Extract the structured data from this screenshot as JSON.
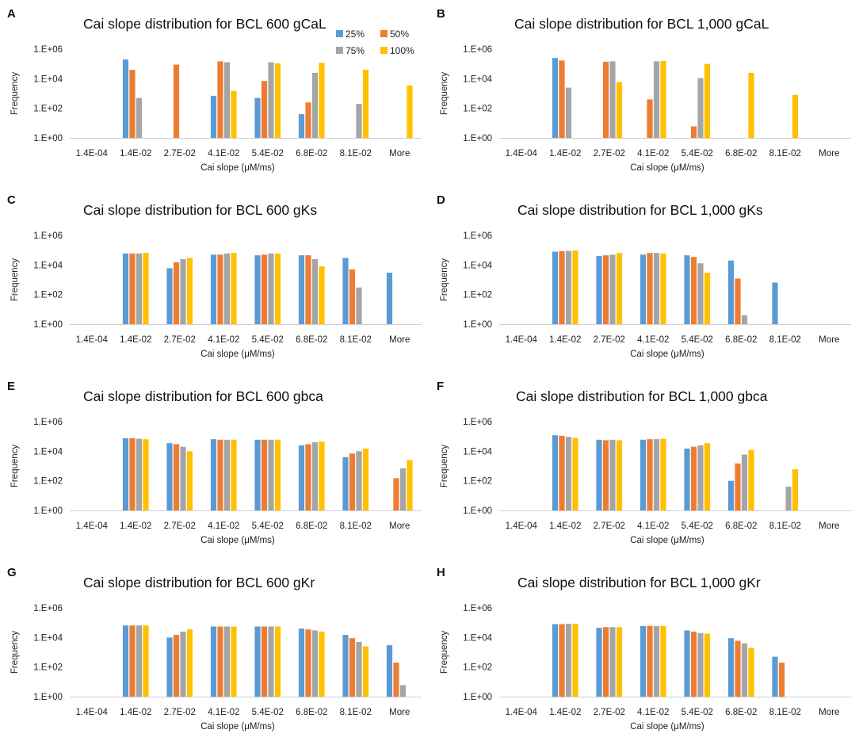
{
  "colors": {
    "p25": "#5B9BD5",
    "p50": "#ED7D31",
    "p75": "#A5A5A5",
    "p100": "#FFC000"
  },
  "legend": [
    "25%",
    "50%",
    "75%",
    "100%"
  ],
  "chart_data": [
    {
      "panel": "A",
      "type": "bar",
      "yscale": "log",
      "title": "Cai slope distribution for BCL 600 gCaL",
      "xlabel": "Cai slope (μM/ms)",
      "ylabel": "Frequency",
      "categories": [
        "1.4E-04",
        "1.4E-02",
        "2.7E-02",
        "4.1E-02",
        "5.4E-02",
        "6.8E-02",
        "8.1E-02",
        "More"
      ],
      "ytick_labels": [
        "1.E+00",
        "1.E+02",
        "1.E+04",
        "1.E+06"
      ],
      "ylim": [
        1,
        1000000
      ],
      "legend_position": "top-right",
      "series": [
        {
          "name": "25%",
          "values": [
            0,
            200000,
            0,
            700,
            500,
            40,
            0,
            0
          ]
        },
        {
          "name": "50%",
          "values": [
            0,
            40000,
            90000,
            150000,
            7000,
            250,
            0,
            0
          ]
        },
        {
          "name": "75%",
          "values": [
            0,
            500,
            0,
            130000,
            130000,
            25000,
            200,
            0
          ]
        },
        {
          "name": "100%",
          "values": [
            0,
            0,
            0,
            1500,
            110000,
            120000,
            40000,
            3500
          ]
        }
      ]
    },
    {
      "panel": "B",
      "type": "bar",
      "yscale": "log",
      "title": "Cai slope distribution for BCL 1,000 gCaL",
      "xlabel": "Cai slope (μM/ms)",
      "ylabel": "Frequency",
      "categories": [
        "1.4E-04",
        "1.4E-02",
        "2.7E-02",
        "4.1E-02",
        "5.4E-02",
        "6.8E-02",
        "8.1E-02",
        "More"
      ],
      "ytick_labels": [
        "1.E+00",
        "1.E+02",
        "1.E+04",
        "1.E+06"
      ],
      "ylim": [
        1,
        1000000
      ],
      "series": [
        {
          "name": "25%",
          "values": [
            0,
            250000,
            0,
            0,
            0,
            0,
            0,
            0
          ]
        },
        {
          "name": "50%",
          "values": [
            0,
            170000,
            140000,
            400,
            6,
            0,
            0,
            0
          ]
        },
        {
          "name": "75%",
          "values": [
            0,
            2500,
            150000,
            150000,
            11000,
            0,
            0,
            0
          ]
        },
        {
          "name": "100%",
          "values": [
            0,
            0,
            6000,
            160000,
            100000,
            25000,
            800,
            0
          ]
        }
      ]
    },
    {
      "panel": "C",
      "type": "bar",
      "yscale": "log",
      "title": "Cai slope distribution for BCL 600 gKs",
      "xlabel": "Cai slope (μM/ms)",
      "ylabel": "Frequency",
      "categories": [
        "1.4E-04",
        "1.4E-02",
        "2.7E-02",
        "4.1E-02",
        "5.4E-02",
        "6.8E-02",
        "8.1E-02",
        "More"
      ],
      "ytick_labels": [
        "1.E+00",
        "1.E+02",
        "1.E+04",
        "1.E+06"
      ],
      "ylim": [
        1,
        1000000
      ],
      "series": [
        {
          "name": "25%",
          "values": [
            0,
            60000,
            6000,
            50000,
            45000,
            45000,
            30000,
            3000
          ]
        },
        {
          "name": "50%",
          "values": [
            0,
            60000,
            15000,
            50000,
            50000,
            45000,
            5000,
            0
          ]
        },
        {
          "name": "75%",
          "values": [
            0,
            60000,
            25000,
            60000,
            60000,
            25000,
            300,
            0
          ]
        },
        {
          "name": "100%",
          "values": [
            0,
            65000,
            30000,
            65000,
            60000,
            8000,
            0,
            0
          ]
        }
      ]
    },
    {
      "panel": "D",
      "type": "bar",
      "yscale": "log",
      "title": "Cai slope distribution for BCL 1,000 gKs",
      "xlabel": "Cai slope (μM/ms)",
      "ylabel": "Frequency",
      "categories": [
        "1.4E-04",
        "1.4E-02",
        "2.7E-02",
        "4.1E-02",
        "5.4E-02",
        "6.8E-02",
        "8.1E-02",
        "More"
      ],
      "ytick_labels": [
        "1.E+00",
        "1.E+02",
        "1.E+04",
        "1.E+06"
      ],
      "ylim": [
        1,
        1000000
      ],
      "series": [
        {
          "name": "25%",
          "values": [
            0,
            80000,
            40000,
            50000,
            45000,
            20000,
            650,
            0
          ]
        },
        {
          "name": "50%",
          "values": [
            0,
            85000,
            45000,
            65000,
            35000,
            1200,
            0,
            0
          ]
        },
        {
          "name": "75%",
          "values": [
            0,
            90000,
            50000,
            65000,
            13000,
            4,
            0,
            0
          ]
        },
        {
          "name": "100%",
          "values": [
            0,
            95000,
            65000,
            60000,
            3000,
            0,
            0,
            0
          ]
        }
      ]
    },
    {
      "panel": "E",
      "type": "bar",
      "yscale": "log",
      "title": "Cai slope distribution for BCL 600 gbca",
      "xlabel": "Cai slope (μM/ms)",
      "ylabel": "Frequency",
      "categories": [
        "1.4E-04",
        "1.4E-02",
        "2.7E-02",
        "4.1E-02",
        "5.4E-02",
        "6.8E-02",
        "8.1E-02",
        "More"
      ],
      "ytick_labels": [
        "1.E+00",
        "1.E+02",
        "1.E+04",
        "1.E+06"
      ],
      "ylim": [
        1,
        1000000
      ],
      "series": [
        {
          "name": "25%",
          "values": [
            0,
            75000,
            35000,
            65000,
            60000,
            25000,
            4000,
            0
          ]
        },
        {
          "name": "50%",
          "values": [
            0,
            75000,
            30000,
            60000,
            60000,
            30000,
            7000,
            150
          ]
        },
        {
          "name": "75%",
          "values": [
            0,
            70000,
            20000,
            60000,
            60000,
            40000,
            10000,
            700
          ]
        },
        {
          "name": "100%",
          "values": [
            0,
            65000,
            10000,
            60000,
            60000,
            45000,
            15000,
            2500
          ]
        }
      ]
    },
    {
      "panel": "F",
      "type": "bar",
      "yscale": "log",
      "title": "Cai slope distribution for BCL 1,000 gbca",
      "xlabel": "Cai slope (μM/ms)",
      "ylabel": "Frequency",
      "categories": [
        "1.4E-04",
        "1.4E-02",
        "2.7E-02",
        "4.1E-02",
        "5.4E-02",
        "6.8E-02",
        "8.1E-02",
        "More"
      ],
      "ytick_labels": [
        "1.E+00",
        "1.E+02",
        "1.E+04",
        "1.E+06"
      ],
      "ylim": [
        1,
        1000000
      ],
      "series": [
        {
          "name": "25%",
          "values": [
            0,
            120000,
            60000,
            60000,
            15000,
            100,
            0,
            0
          ]
        },
        {
          "name": "50%",
          "values": [
            0,
            110000,
            55000,
            65000,
            20000,
            1500,
            0,
            0
          ]
        },
        {
          "name": "75%",
          "values": [
            0,
            95000,
            60000,
            65000,
            25000,
            6000,
            40,
            0
          ]
        },
        {
          "name": "100%",
          "values": [
            0,
            80000,
            55000,
            70000,
            35000,
            12000,
            600,
            0
          ]
        }
      ]
    },
    {
      "panel": "G",
      "type": "bar",
      "yscale": "log",
      "title": "Cai slope distribution for BCL 600 gKr",
      "xlabel": "Cai slope (μM/ms)",
      "ylabel": "Frequency",
      "categories": [
        "1.4E-04",
        "1.4E-02",
        "2.7E-02",
        "4.1E-02",
        "5.4E-02",
        "6.8E-02",
        "8.1E-02",
        "More"
      ],
      "ytick_labels": [
        "1.E+00",
        "1.E+02",
        "1.E+04",
        "1.E+06"
      ],
      "ylim": [
        1,
        1000000
      ],
      "series": [
        {
          "name": "25%",
          "values": [
            0,
            65000,
            10000,
            55000,
            55000,
            40000,
            15000,
            3000
          ]
        },
        {
          "name": "50%",
          "values": [
            0,
            65000,
            15000,
            55000,
            55000,
            35000,
            9000,
            200
          ]
        },
        {
          "name": "75%",
          "values": [
            0,
            65000,
            25000,
            55000,
            55000,
            30000,
            5000,
            6
          ]
        },
        {
          "name": "100%",
          "values": [
            0,
            65000,
            35000,
            55000,
            55000,
            25000,
            2500,
            0
          ]
        }
      ]
    },
    {
      "panel": "H",
      "type": "bar",
      "yscale": "log",
      "title": "Cai slope distribution for BCL 1,000 gKr",
      "xlabel": "Cai slope (μM/ms)",
      "ylabel": "Frequency",
      "categories": [
        "1.4E-04",
        "1.4E-02",
        "2.7E-02",
        "4.1E-02",
        "5.4E-02",
        "6.8E-02",
        "8.1E-02",
        "More"
      ],
      "ytick_labels": [
        "1.E+00",
        "1.E+02",
        "1.E+04",
        "1.E+06"
      ],
      "ylim": [
        1,
        1000000
      ],
      "series": [
        {
          "name": "25%",
          "values": [
            0,
            80000,
            45000,
            60000,
            30000,
            9000,
            500,
            0
          ]
        },
        {
          "name": "50%",
          "values": [
            0,
            80000,
            50000,
            60000,
            25000,
            6000,
            200,
            0
          ]
        },
        {
          "name": "75%",
          "values": [
            0,
            85000,
            50000,
            60000,
            20000,
            4000,
            0,
            0
          ]
        },
        {
          "name": "100%",
          "values": [
            0,
            85000,
            50000,
            60000,
            18000,
            2000,
            0,
            0
          ]
        }
      ]
    }
  ]
}
